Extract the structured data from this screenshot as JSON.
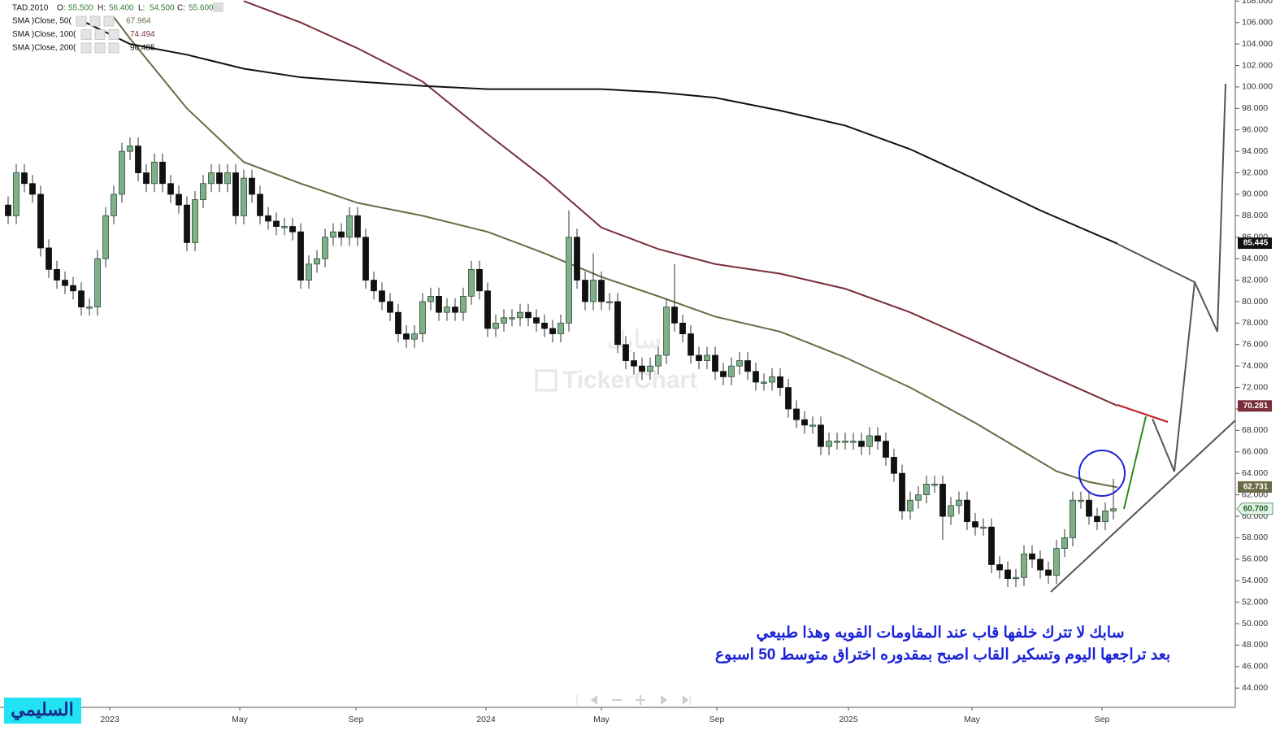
{
  "chart_data": {
    "type": "candlestick",
    "symbol": "TAD.2010",
    "header": [
      {
        "name": "O:",
        "value": "55.500"
      },
      {
        "name": "H:",
        "value": "56.400"
      },
      {
        "name": "L:",
        "value": "54.500"
      },
      {
        "name": "C:",
        "value": "55.600"
      }
    ],
    "up_color": "#7fb08a",
    "down_color": "#111111",
    "open": [
      89,
      88,
      92,
      91,
      90,
      85,
      83,
      82,
      81.5,
      81,
      79.5,
      79.5,
      84,
      88,
      90,
      94,
      94.5,
      92,
      91,
      93,
      91,
      90,
      89,
      85.5,
      89.5,
      91,
      92,
      91,
      92,
      88,
      91.5,
      90,
      88,
      87.5,
      87,
      87,
      86.5,
      82,
      83.5,
      84,
      86,
      86.5,
      86,
      88,
      86,
      82,
      81,
      80,
      79,
      77,
      76.5,
      77,
      80,
      80.5,
      79,
      79.5,
      79,
      80.5,
      83,
      81,
      77.5,
      78,
      78.5,
      78.5,
      79,
      78.5,
      78,
      77.5,
      77,
      78,
      86,
      82,
      80,
      82,
      80,
      80,
      76,
      74.5,
      74,
      73.5,
      74,
      75,
      79.5,
      78,
      77,
      75,
      74.5,
      75,
      73.5,
      73,
      74,
      74.5,
      73.5,
      72.5,
      72.5,
      73,
      72,
      70,
      69,
      68.5,
      68.5,
      66.5,
      67,
      67,
      67,
      67,
      66.5,
      67.5,
      67,
      65.5,
      64,
      60.5,
      61.5,
      62,
      63,
      63,
      60,
      61,
      61.5,
      59.5,
      59,
      59,
      55.5,
      55,
      54.2,
      54.3,
      56.5,
      56,
      55,
      54.5,
      57,
      58,
      61.5,
      61.5,
      60,
      59.5,
      60.5
    ],
    "high": [
      89.8,
      92.8,
      92.8,
      91.8,
      90.8,
      85.8,
      83.8,
      82.8,
      82.3,
      81.8,
      80.3,
      84.8,
      88.8,
      90.8,
      94.8,
      95.3,
      95.3,
      92.8,
      93.8,
      93.8,
      91.8,
      90.8,
      89.8,
      90.3,
      91.8,
      92.8,
      92.8,
      92.8,
      92.8,
      92.3,
      92.3,
      90.8,
      88.8,
      88.3,
      87.8,
      87.8,
      87.3,
      84.3,
      84.8,
      86.8,
      87.3,
      87.3,
      88.8,
      88.8,
      86.8,
      82.8,
      81.8,
      80.8,
      79.8,
      77.8,
      77.8,
      80.8,
      81.3,
      81.3,
      80.3,
      80.3,
      81.3,
      83.8,
      83.8,
      81.8,
      78.8,
      79.3,
      79.3,
      79.8,
      79.8,
      79.3,
      78.8,
      78.3,
      78.8,
      88.5,
      86.8,
      82.8,
      84.5,
      82.8,
      80.8,
      80.8,
      76.8,
      75.3,
      74.8,
      74.8,
      75.8,
      80.3,
      83.5,
      78.8,
      77.8,
      75.8,
      75.8,
      75.8,
      74.3,
      74.8,
      75.3,
      75.3,
      74.3,
      73.3,
      73.8,
      73.8,
      72.8,
      70.8,
      69.8,
      69.3,
      69.3,
      67.8,
      67.8,
      67.8,
      67.8,
      67.8,
      68.3,
      68.3,
      67.8,
      66.3,
      64.8,
      62.3,
      62.8,
      63.8,
      63.8,
      63.8,
      61.8,
      62.3,
      62.3,
      60.3,
      59.8,
      59.8,
      56.3,
      55.8,
      55.1,
      57.3,
      57.3,
      56.8,
      55.8,
      57.8,
      58.8,
      62.3,
      62.3,
      62.3,
      60.8,
      61.3,
      63.5
    ],
    "low": [
      87.2,
      87.2,
      90.2,
      89.2,
      84.2,
      82.2,
      81.2,
      80.7,
      80.2,
      78.7,
      78.7,
      78.7,
      83.2,
      87.2,
      89.2,
      93.2,
      91.2,
      90.2,
      90.2,
      90.2,
      89.2,
      88.2,
      84.7,
      84.7,
      88.7,
      90.2,
      90.2,
      90.2,
      87.2,
      87.2,
      89.2,
      87.2,
      86.7,
      86.2,
      86.2,
      85.7,
      81.2,
      81.2,
      82.7,
      83.2,
      85.2,
      85.2,
      85.2,
      85.2,
      81.2,
      80.2,
      79.2,
      78.2,
      76.2,
      75.7,
      75.7,
      76.2,
      79.2,
      78.2,
      78.2,
      78.2,
      78.2,
      79.7,
      80.2,
      76.7,
      76.7,
      77.2,
      77.7,
      77.7,
      77.7,
      77.2,
      76.7,
      76.2,
      76.2,
      77.2,
      81.2,
      79.2,
      79.2,
      79.2,
      79.2,
      75.2,
      73.7,
      73.2,
      72.7,
      72.7,
      73.2,
      74.2,
      77.2,
      76.2,
      74.2,
      73.7,
      73.7,
      72.7,
      72.2,
      72.2,
      73.2,
      72.7,
      71.7,
      71.7,
      71.7,
      71.2,
      69.2,
      68.2,
      67.7,
      67.7,
      65.7,
      65.7,
      66.2,
      66.2,
      66.2,
      65.7,
      65.7,
      66.2,
      64.7,
      63.2,
      59.7,
      59.7,
      60.7,
      61.2,
      62.2,
      57.8,
      59.2,
      60.2,
      58.7,
      58.2,
      58.2,
      54.7,
      54.2,
      53.4,
      53.4,
      53.5,
      55.2,
      54.2,
      53.7,
      53.7,
      56.2,
      57.2,
      60.7,
      59.2,
      58.7,
      58.7,
      59.7
    ],
    "close": [
      88,
      92,
      91,
      90,
      85,
      83,
      82,
      81.5,
      81,
      79.5,
      79.5,
      84,
      88,
      90,
      94,
      94.5,
      92,
      91,
      93,
      91,
      90,
      89,
      85.5,
      89.5,
      91,
      92,
      91,
      92,
      88,
      91.5,
      90,
      88,
      87.5,
      87,
      87,
      86.5,
      82,
      83.5,
      84,
      86,
      86.5,
      86,
      88,
      86,
      82,
      81,
      80,
      79,
      77,
      76.5,
      77,
      80,
      80.5,
      79,
      79.5,
      79,
      80.5,
      83,
      81,
      77.5,
      78,
      78.5,
      78.5,
      79,
      78.5,
      78,
      77.5,
      77,
      78,
      86,
      82,
      80,
      82,
      80,
      80,
      76,
      74.5,
      74,
      73.5,
      74,
      75,
      79.5,
      78,
      77,
      75,
      74.5,
      75,
      73.5,
      73,
      74,
      74.5,
      73.5,
      72.5,
      72.5,
      73,
      72,
      70,
      69,
      68.5,
      68.5,
      66.5,
      67,
      67,
      67,
      67,
      66.5,
      67.5,
      67,
      65.5,
      64,
      60.5,
      61.5,
      62,
      63,
      63,
      60,
      61,
      61.5,
      59.5,
      59,
      59,
      55.5,
      55,
      54.2,
      54.3,
      56.5,
      56,
      55,
      54.5,
      57,
      58,
      61.5,
      61.5,
      60,
      59.5,
      60.5,
      60.7
    ],
    "series": [
      {
        "name": "SMA )Close, 50(",
        "legend_value": "67.964",
        "color": "#6b6b47",
        "x": [
          13,
          15,
          22,
          29,
          36,
          43,
          51,
          59,
          66,
          73,
          80,
          87,
          95,
          103,
          111,
          119,
          125,
          129,
          133,
          136.5
        ],
        "values": [
          106.5,
          104.5,
          98,
          93,
          91,
          89.2,
          88,
          86.5,
          84.5,
          82.3,
          80.5,
          78.6,
          77.2,
          74.8,
          72,
          68.7,
          66,
          64.2,
          63.2,
          62.7
        ]
      },
      {
        "name": "SMA )Close, 100(",
        "legend_value": "74.494",
        "color": "#7a2e3a",
        "x": [
          29,
          36,
          43,
          51,
          59,
          66,
          73,
          80,
          87,
          95,
          103,
          111,
          119,
          127,
          136.5
        ],
        "values": [
          108,
          106,
          103.6,
          100.5,
          95.6,
          91.5,
          86.9,
          84.9,
          83.5,
          82.6,
          81.2,
          79,
          76.3,
          73.5,
          70.3
        ]
      },
      {
        "name": "SMA )Close, 200(",
        "legend_value": "90.485",
        "color": "#111111",
        "x": [
          9,
          15,
          22,
          29,
          36,
          43,
          51,
          59,
          66,
          73,
          80,
          87,
          95,
          103,
          111,
          119,
          127,
          136.5
        ],
        "values": [
          106.2,
          104,
          103,
          101.7,
          100.9,
          100.5,
          100.1,
          99.8,
          99.8,
          99.8,
          99.5,
          99,
          97.8,
          96.4,
          94.2,
          91.4,
          88.5,
          85.4
        ]
      }
    ],
    "price_labels": [
      {
        "value": 85.445,
        "label": "85.445",
        "color": "#111111",
        "text_color": "#ffffff"
      },
      {
        "value": 70.281,
        "label": "70.281",
        "color": "#7a2e3a",
        "text_color": "#ffffff"
      },
      {
        "value": 62.731,
        "label": "62.731",
        "color": "#6b6b47",
        "text_color": "#ffffff"
      },
      {
        "value": 60.7,
        "label": "60.700",
        "color": "#e4f3e7",
        "text_color": "#1b5e20"
      }
    ],
    "xlim": [
      -1,
      151
    ],
    "xticks": [
      {
        "value": 12.5,
        "label": "2023"
      },
      {
        "value": 28.5,
        "label": "May"
      },
      {
        "value": 42.8,
        "label": "Sep"
      },
      {
        "value": 58.8,
        "label": "2024"
      },
      {
        "value": 73,
        "label": "May"
      },
      {
        "value": 87.2,
        "label": "Sep"
      },
      {
        "value": 103.4,
        "label": "2025"
      },
      {
        "value": 118.6,
        "label": "May"
      },
      {
        "value": 134.6,
        "label": "Sep"
      }
    ],
    "ylim": [
      42.2,
      108.1
    ],
    "yticks": [
      {
        "value": 44,
        "label": "44.000"
      },
      {
        "value": 46,
        "label": "46.000"
      },
      {
        "value": 48,
        "label": "48.000"
      },
      {
        "value": 50,
        "label": "50.000"
      },
      {
        "value": 52,
        "label": "52.000"
      },
      {
        "value": 54,
        "label": "54.000"
      },
      {
        "value": 56,
        "label": "56.000"
      },
      {
        "value": 58,
        "label": "58.000"
      },
      {
        "value": 60,
        "label": "60.000"
      },
      {
        "value": 62,
        "label": "62.000"
      },
      {
        "value": 64,
        "label": "64.000"
      },
      {
        "value": 66,
        "label": "66.000"
      },
      {
        "value": 68,
        "label": "68.000"
      },
      {
        "value": 70,
        "label": "70.000"
      },
      {
        "value": 72,
        "label": "72.000"
      },
      {
        "value": 74,
        "label": "74.000"
      },
      {
        "value": 76,
        "label": "76.000"
      },
      {
        "value": 78,
        "label": "78.000"
      },
      {
        "value": 80,
        "label": "80.000"
      },
      {
        "value": 82,
        "label": "82.000"
      },
      {
        "value": 84,
        "label": "84.000"
      },
      {
        "value": 86,
        "label": "86.000"
      },
      {
        "value": 88,
        "label": "88.000"
      },
      {
        "value": 90,
        "label": "90.000"
      },
      {
        "value": 92,
        "label": "92.000"
      },
      {
        "value": 94,
        "label": "94.000"
      },
      {
        "value": 96,
        "label": "96.000"
      },
      {
        "value": 98,
        "label": "98.000"
      },
      {
        "value": 100,
        "label": "100.000"
      },
      {
        "value": 102,
        "label": "102.000"
      },
      {
        "value": 104,
        "label": "104.000"
      },
      {
        "value": 106,
        "label": "106.000"
      },
      {
        "value": 108,
        "label": "108.000"
      }
    ],
    "grid": false,
    "annotations": [
      "سابك لا تترك خلفها قاب عند المقاومات القويه وهذا طبيعي",
      "بعد تراجعها اليوم وتسكير القاب اصبح بمقدوره اختراق متوسط 50 اسبوع"
    ],
    "watermark": [
      "سابك",
      "TickerChart"
    ],
    "author": "السليمي"
  }
}
